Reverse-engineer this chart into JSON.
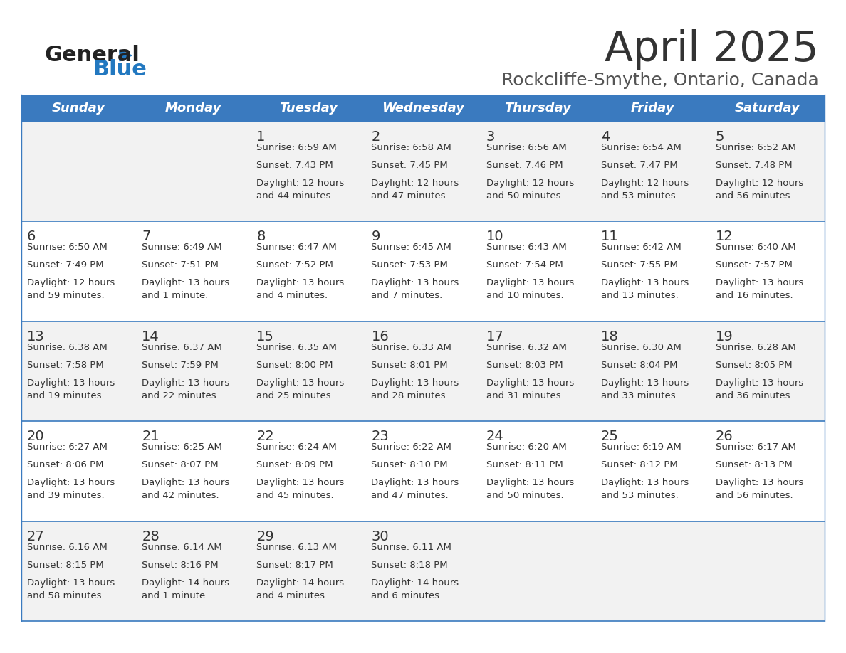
{
  "title": "April 2025",
  "subtitle": "Rockcliffe-Smythe, Ontario, Canada",
  "days_of_week": [
    "Sunday",
    "Monday",
    "Tuesday",
    "Wednesday",
    "Thursday",
    "Friday",
    "Saturday"
  ],
  "header_bg": "#3a7abf",
  "header_text": "#ffffff",
  "row_bg_odd": "#f2f2f2",
  "row_bg_even": "#ffffff",
  "cell_text": "#333333",
  "separator_color": "#3a7abf",
  "title_color": "#333333",
  "subtitle_color": "#555555",
  "logo_general_color": "#222222",
  "logo_blue_color": "#2278c0",
  "weeks": [
    [
      {
        "day": "",
        "sunrise": "",
        "sunset": "",
        "daylight": ""
      },
      {
        "day": "",
        "sunrise": "",
        "sunset": "",
        "daylight": ""
      },
      {
        "day": "1",
        "sunrise": "Sunrise: 6:59 AM",
        "sunset": "Sunset: 7:43 PM",
        "daylight": "Daylight: 12 hours\nand 44 minutes."
      },
      {
        "day": "2",
        "sunrise": "Sunrise: 6:58 AM",
        "sunset": "Sunset: 7:45 PM",
        "daylight": "Daylight: 12 hours\nand 47 minutes."
      },
      {
        "day": "3",
        "sunrise": "Sunrise: 6:56 AM",
        "sunset": "Sunset: 7:46 PM",
        "daylight": "Daylight: 12 hours\nand 50 minutes."
      },
      {
        "day": "4",
        "sunrise": "Sunrise: 6:54 AM",
        "sunset": "Sunset: 7:47 PM",
        "daylight": "Daylight: 12 hours\nand 53 minutes."
      },
      {
        "day": "5",
        "sunrise": "Sunrise: 6:52 AM",
        "sunset": "Sunset: 7:48 PM",
        "daylight": "Daylight: 12 hours\nand 56 minutes."
      }
    ],
    [
      {
        "day": "6",
        "sunrise": "Sunrise: 6:50 AM",
        "sunset": "Sunset: 7:49 PM",
        "daylight": "Daylight: 12 hours\nand 59 minutes."
      },
      {
        "day": "7",
        "sunrise": "Sunrise: 6:49 AM",
        "sunset": "Sunset: 7:51 PM",
        "daylight": "Daylight: 13 hours\nand 1 minute."
      },
      {
        "day": "8",
        "sunrise": "Sunrise: 6:47 AM",
        "sunset": "Sunset: 7:52 PM",
        "daylight": "Daylight: 13 hours\nand 4 minutes."
      },
      {
        "day": "9",
        "sunrise": "Sunrise: 6:45 AM",
        "sunset": "Sunset: 7:53 PM",
        "daylight": "Daylight: 13 hours\nand 7 minutes."
      },
      {
        "day": "10",
        "sunrise": "Sunrise: 6:43 AM",
        "sunset": "Sunset: 7:54 PM",
        "daylight": "Daylight: 13 hours\nand 10 minutes."
      },
      {
        "day": "11",
        "sunrise": "Sunrise: 6:42 AM",
        "sunset": "Sunset: 7:55 PM",
        "daylight": "Daylight: 13 hours\nand 13 minutes."
      },
      {
        "day": "12",
        "sunrise": "Sunrise: 6:40 AM",
        "sunset": "Sunset: 7:57 PM",
        "daylight": "Daylight: 13 hours\nand 16 minutes."
      }
    ],
    [
      {
        "day": "13",
        "sunrise": "Sunrise: 6:38 AM",
        "sunset": "Sunset: 7:58 PM",
        "daylight": "Daylight: 13 hours\nand 19 minutes."
      },
      {
        "day": "14",
        "sunrise": "Sunrise: 6:37 AM",
        "sunset": "Sunset: 7:59 PM",
        "daylight": "Daylight: 13 hours\nand 22 minutes."
      },
      {
        "day": "15",
        "sunrise": "Sunrise: 6:35 AM",
        "sunset": "Sunset: 8:00 PM",
        "daylight": "Daylight: 13 hours\nand 25 minutes."
      },
      {
        "day": "16",
        "sunrise": "Sunrise: 6:33 AM",
        "sunset": "Sunset: 8:01 PM",
        "daylight": "Daylight: 13 hours\nand 28 minutes."
      },
      {
        "day": "17",
        "sunrise": "Sunrise: 6:32 AM",
        "sunset": "Sunset: 8:03 PM",
        "daylight": "Daylight: 13 hours\nand 31 minutes."
      },
      {
        "day": "18",
        "sunrise": "Sunrise: 6:30 AM",
        "sunset": "Sunset: 8:04 PM",
        "daylight": "Daylight: 13 hours\nand 33 minutes."
      },
      {
        "day": "19",
        "sunrise": "Sunrise: 6:28 AM",
        "sunset": "Sunset: 8:05 PM",
        "daylight": "Daylight: 13 hours\nand 36 minutes."
      }
    ],
    [
      {
        "day": "20",
        "sunrise": "Sunrise: 6:27 AM",
        "sunset": "Sunset: 8:06 PM",
        "daylight": "Daylight: 13 hours\nand 39 minutes."
      },
      {
        "day": "21",
        "sunrise": "Sunrise: 6:25 AM",
        "sunset": "Sunset: 8:07 PM",
        "daylight": "Daylight: 13 hours\nand 42 minutes."
      },
      {
        "day": "22",
        "sunrise": "Sunrise: 6:24 AM",
        "sunset": "Sunset: 8:09 PM",
        "daylight": "Daylight: 13 hours\nand 45 minutes."
      },
      {
        "day": "23",
        "sunrise": "Sunrise: 6:22 AM",
        "sunset": "Sunset: 8:10 PM",
        "daylight": "Daylight: 13 hours\nand 47 minutes."
      },
      {
        "day": "24",
        "sunrise": "Sunrise: 6:20 AM",
        "sunset": "Sunset: 8:11 PM",
        "daylight": "Daylight: 13 hours\nand 50 minutes."
      },
      {
        "day": "25",
        "sunrise": "Sunrise: 6:19 AM",
        "sunset": "Sunset: 8:12 PM",
        "daylight": "Daylight: 13 hours\nand 53 minutes."
      },
      {
        "day": "26",
        "sunrise": "Sunrise: 6:17 AM",
        "sunset": "Sunset: 8:13 PM",
        "daylight": "Daylight: 13 hours\nand 56 minutes."
      }
    ],
    [
      {
        "day": "27",
        "sunrise": "Sunrise: 6:16 AM",
        "sunset": "Sunset: 8:15 PM",
        "daylight": "Daylight: 13 hours\nand 58 minutes."
      },
      {
        "day": "28",
        "sunrise": "Sunrise: 6:14 AM",
        "sunset": "Sunset: 8:16 PM",
        "daylight": "Daylight: 14 hours\nand 1 minute."
      },
      {
        "day": "29",
        "sunrise": "Sunrise: 6:13 AM",
        "sunset": "Sunset: 8:17 PM",
        "daylight": "Daylight: 14 hours\nand 4 minutes."
      },
      {
        "day": "30",
        "sunrise": "Sunrise: 6:11 AM",
        "sunset": "Sunset: 8:18 PM",
        "daylight": "Daylight: 14 hours\nand 6 minutes."
      },
      {
        "day": "",
        "sunrise": "",
        "sunset": "",
        "daylight": ""
      },
      {
        "day": "",
        "sunrise": "",
        "sunset": "",
        "daylight": ""
      },
      {
        "day": "",
        "sunrise": "",
        "sunset": "",
        "daylight": ""
      }
    ]
  ]
}
